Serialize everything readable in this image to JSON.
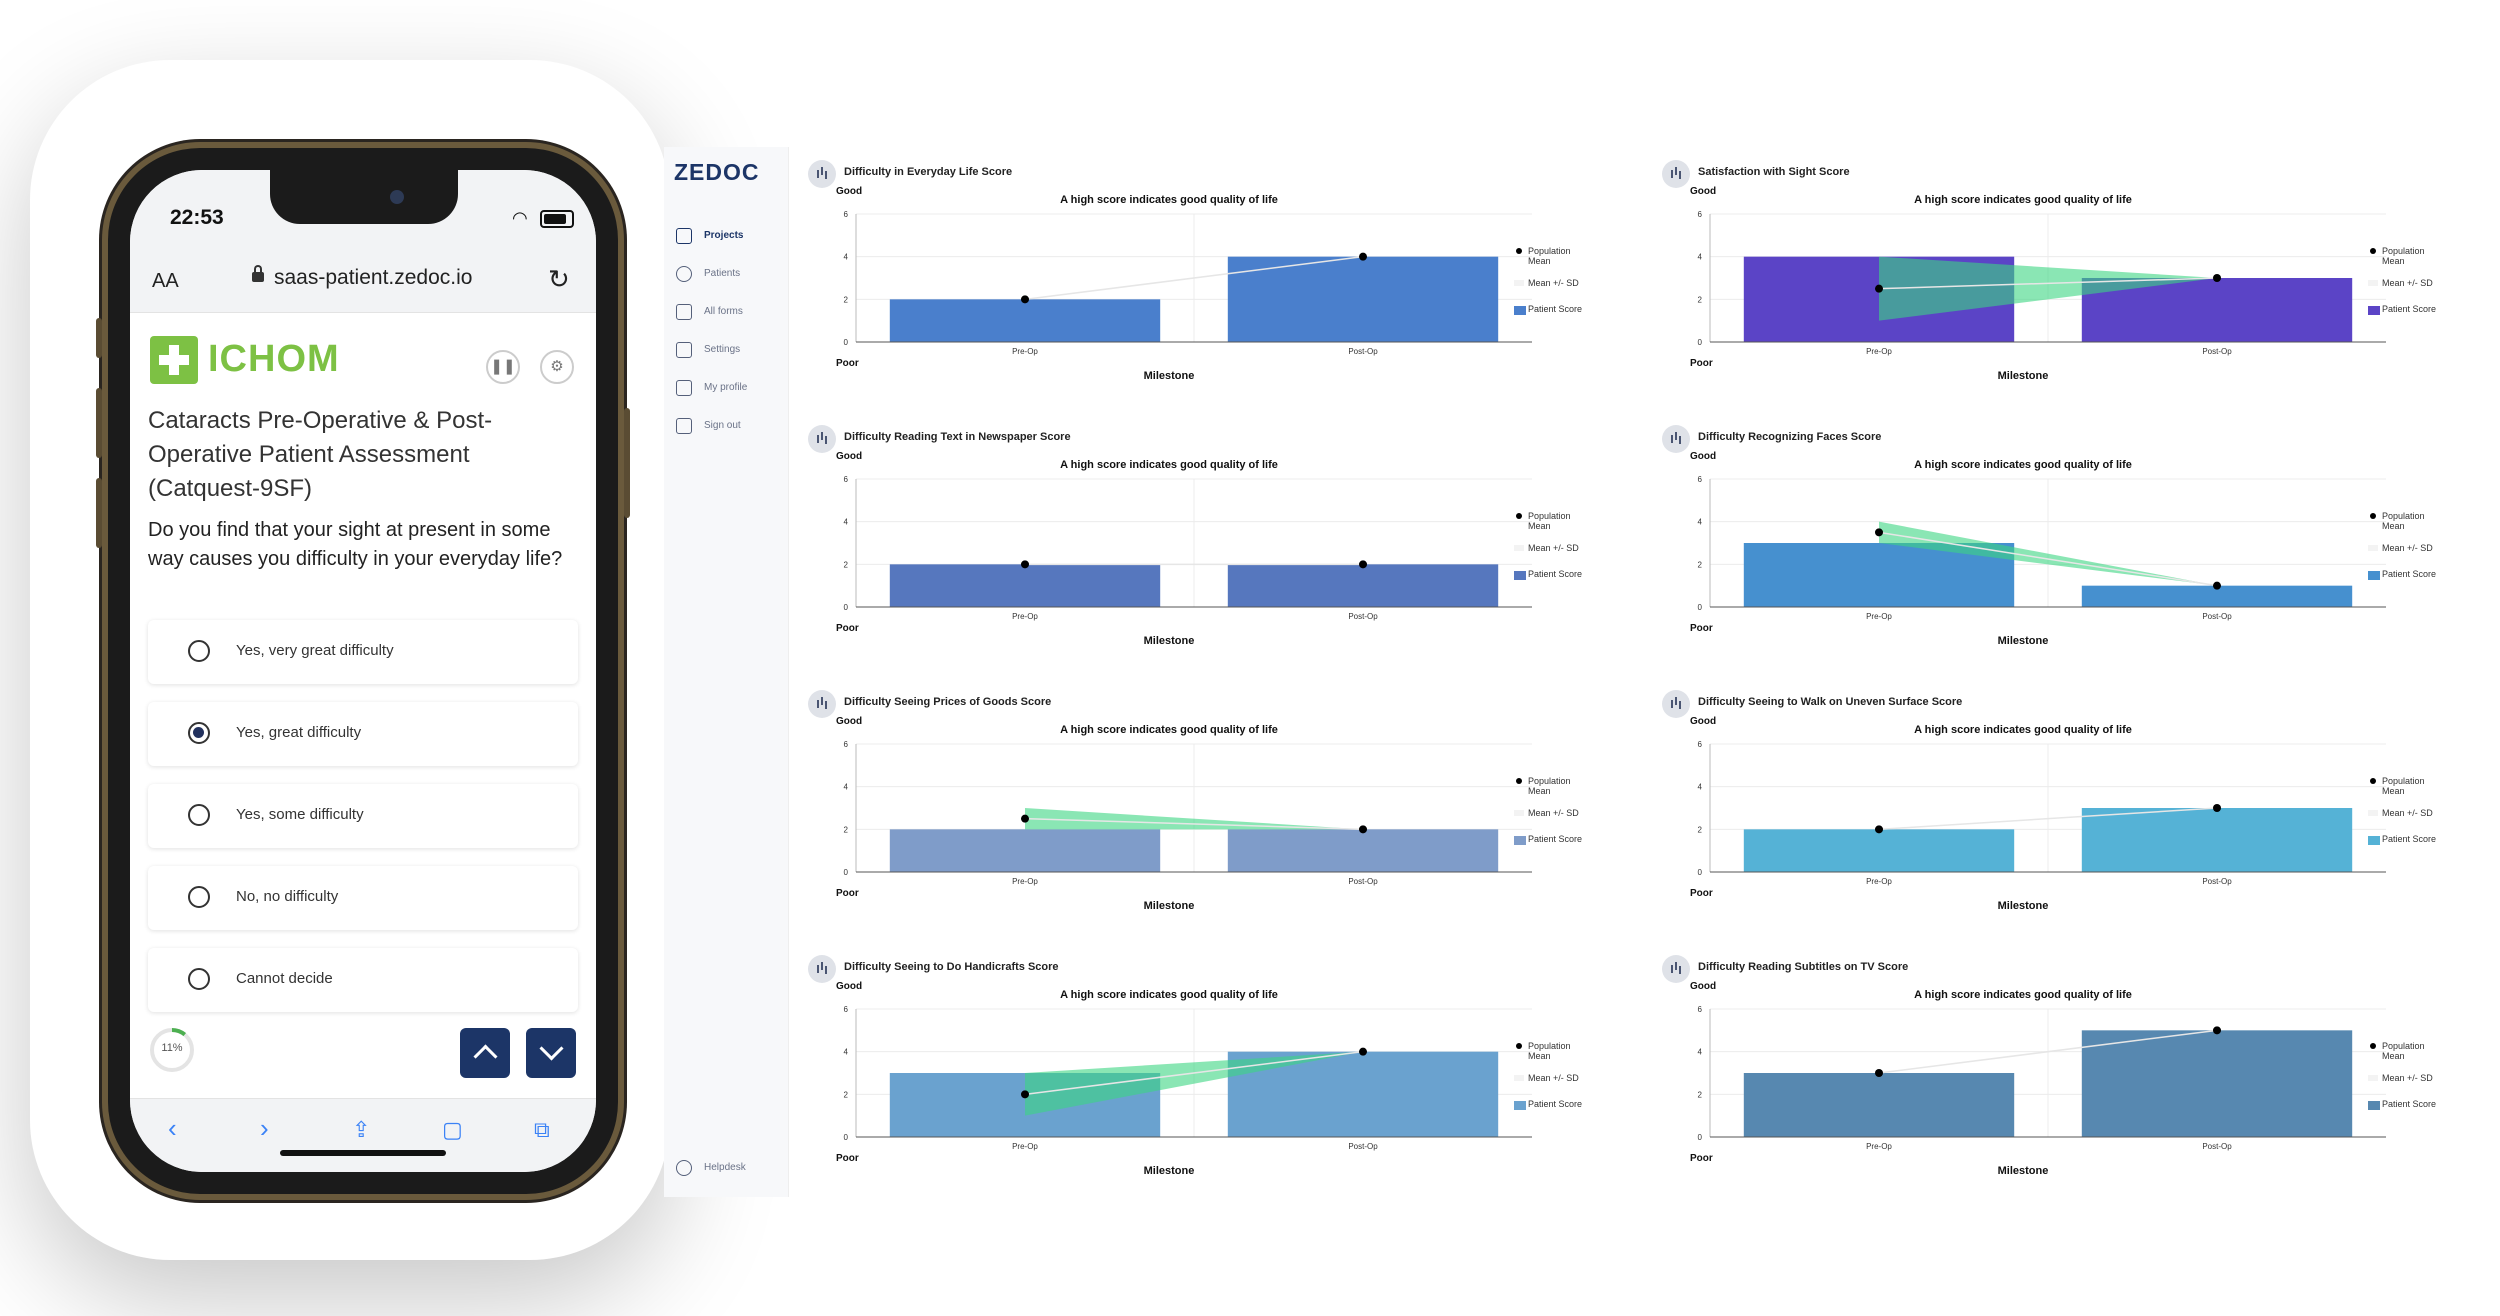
{
  "phone": {
    "status_time": "22:53",
    "url_prefix": "AA",
    "url": "saas-patient.zedoc.io",
    "logo_text": "ICHOM",
    "survey_title": "Cataracts Pre-Operative & Post-Operative Patient Assessment (Catquest-9SF)",
    "question": "Do you find that your sight at present in some way causes you difficulty in your everyday life?",
    "options": [
      {
        "label": "Yes, very great difficulty",
        "selected": false
      },
      {
        "label": "Yes, great difficulty",
        "selected": true
      },
      {
        "label": "Yes, some difficulty",
        "selected": false
      },
      {
        "label": "No, no difficulty",
        "selected": false
      },
      {
        "label": "Cannot decide",
        "selected": false
      }
    ],
    "progress": {
      "percent": 11,
      "label": "11%"
    },
    "icons": {
      "back": "chevron-left-icon",
      "forward": "chevron-right-icon",
      "share": "share-icon",
      "bookmarks": "book-icon",
      "tabs": "tabs-icon"
    }
  },
  "sidebar": {
    "brand": "ZEDOC",
    "items": [
      {
        "label": "Projects",
        "active": true
      },
      {
        "label": "Patients",
        "active": false
      },
      {
        "label": "All forms",
        "active": false
      },
      {
        "label": "Settings",
        "active": false
      },
      {
        "label": "My profile",
        "active": false
      },
      {
        "label": "Sign out",
        "active": false
      }
    ],
    "helpdesk": "Helpdesk"
  },
  "chart_common": {
    "good_label": "Good",
    "poor_label": "Poor",
    "note": "A high score indicates good quality of life",
    "xlabel": "Milestone",
    "legend": {
      "mean_line1": "Population",
      "mean_line2": "Mean",
      "sd": "Mean +/- SD",
      "score": "Patient Score"
    }
  },
  "chart_data": [
    {
      "type": "bar",
      "title": "Difficulty in Everyday Life Score",
      "categories": [
        "Pre-Op",
        "Post-Op"
      ],
      "values": [
        2,
        4
      ],
      "population_mean": [
        2,
        4
      ],
      "sd_band": null,
      "ylim": [
        0,
        6
      ],
      "yticks": [
        0,
        2,
        4,
        6
      ],
      "color": "#4a7fcc"
    },
    {
      "type": "bar",
      "title": "Satisfaction with Sight Score",
      "categories": [
        "Pre-Op",
        "Post-Op"
      ],
      "values": [
        4,
        3
      ],
      "population_mean": [
        2.5,
        3
      ],
      "sd_band": [
        [
          1,
          4
        ],
        [
          3,
          3
        ]
      ],
      "ylim": [
        0,
        6
      ],
      "yticks": [
        0,
        2,
        4,
        6
      ],
      "color": "#5b44c6"
    },
    {
      "type": "bar",
      "title": "Difficulty Reading Text in Newspaper Score",
      "categories": [
        "Pre-Op",
        "Post-Op"
      ],
      "values": [
        2,
        2
      ],
      "population_mean": [
        2,
        2
      ],
      "sd_band": null,
      "ylim": [
        0,
        6
      ],
      "yticks": [
        0,
        2,
        4,
        6
      ],
      "color": "#5677be"
    },
    {
      "type": "bar",
      "title": "Difficulty Recognizing Faces Score",
      "categories": [
        "Pre-Op",
        "Post-Op"
      ],
      "values": [
        3,
        1
      ],
      "population_mean": [
        3.5,
        1
      ],
      "sd_band": [
        [
          3,
          4
        ],
        [
          1,
          1
        ]
      ],
      "ylim": [
        0,
        6
      ],
      "yticks": [
        0,
        2,
        4,
        6
      ],
      "color": "#4690cf"
    },
    {
      "type": "bar",
      "title": "Difficulty Seeing Prices of Goods Score",
      "categories": [
        "Pre-Op",
        "Post-Op"
      ],
      "values": [
        2,
        2
      ],
      "population_mean": [
        2.5,
        2
      ],
      "sd_band": [
        [
          2,
          3
        ],
        [
          2,
          2
        ]
      ],
      "ylim": [
        0,
        6
      ],
      "yticks": [
        0,
        2,
        4,
        6
      ],
      "color": "#7f9cc9"
    },
    {
      "type": "bar",
      "title": "Difficulty Seeing to Walk on Uneven Surface Score",
      "categories": [
        "Pre-Op",
        "Post-Op"
      ],
      "values": [
        2,
        3
      ],
      "population_mean": [
        2,
        3
      ],
      "sd_band": null,
      "ylim": [
        0,
        6
      ],
      "yticks": [
        0,
        2,
        4,
        6
      ],
      "color": "#55b2d6"
    },
    {
      "type": "bar",
      "title": "Difficulty Seeing to Do Handicrafts Score",
      "categories": [
        "Pre-Op",
        "Post-Op"
      ],
      "values": [
        3,
        4
      ],
      "population_mean": [
        2,
        4
      ],
      "sd_band": [
        [
          1,
          3
        ],
        [
          4,
          4
        ]
      ],
      "ylim": [
        0,
        6
      ],
      "yticks": [
        0,
        2,
        4,
        6
      ],
      "color": "#6aa2cf"
    },
    {
      "type": "bar",
      "title": "Difficulty Reading Subtitles on TV Score",
      "categories": [
        "Pre-Op",
        "Post-Op"
      ],
      "values": [
        3,
        5
      ],
      "population_mean": [
        3,
        5
      ],
      "sd_band": null,
      "ylim": [
        0,
        6
      ],
      "yticks": [
        0,
        2,
        4,
        6
      ],
      "color": "#5788b0"
    }
  ]
}
